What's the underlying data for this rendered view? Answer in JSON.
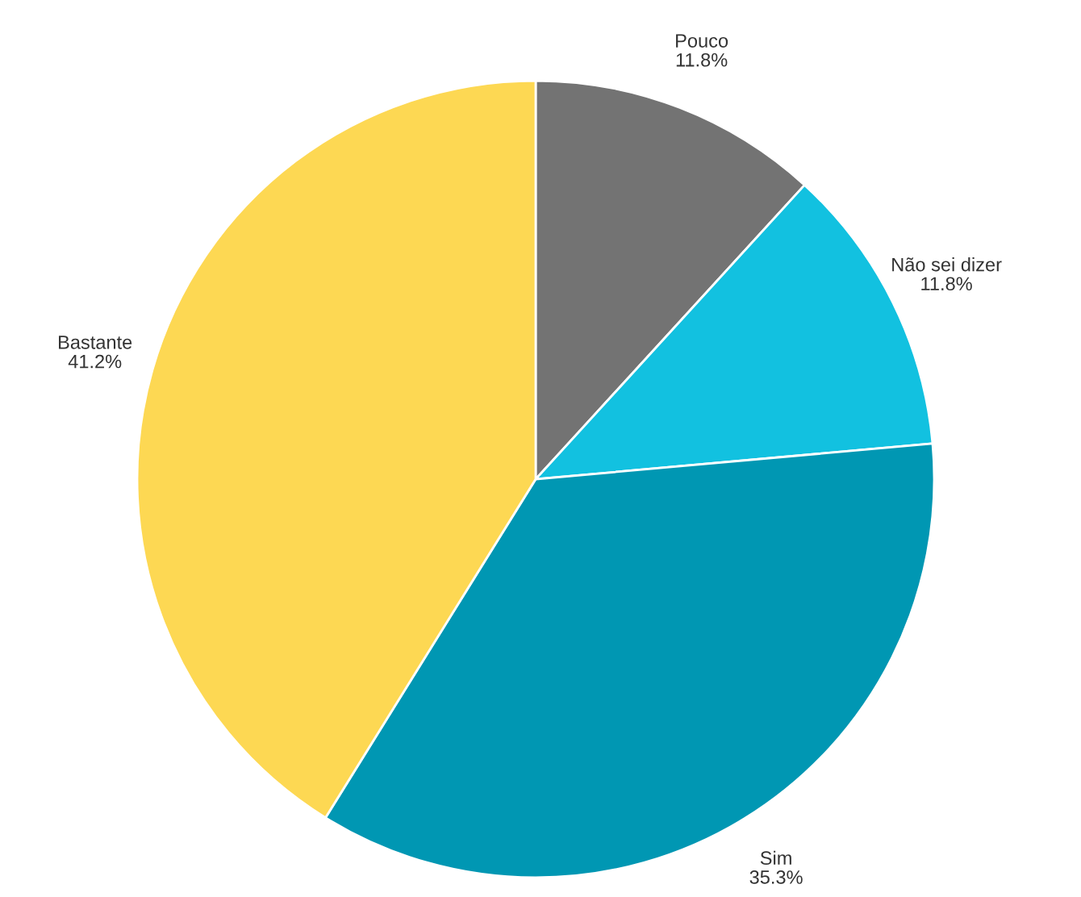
{
  "chart_data": {
    "type": "pie",
    "categories": [
      "Pouco",
      "Não sei dizer",
      "Sim",
      "Bastante"
    ],
    "values": [
      11.8,
      11.8,
      35.3,
      41.2
    ],
    "colors": [
      "#737373",
      "#12c1e0",
      "#0097b3",
      "#fdd853"
    ],
    "value_labels": [
      "11.8%",
      "11.8%",
      "35.3%",
      "41.2%"
    ]
  }
}
